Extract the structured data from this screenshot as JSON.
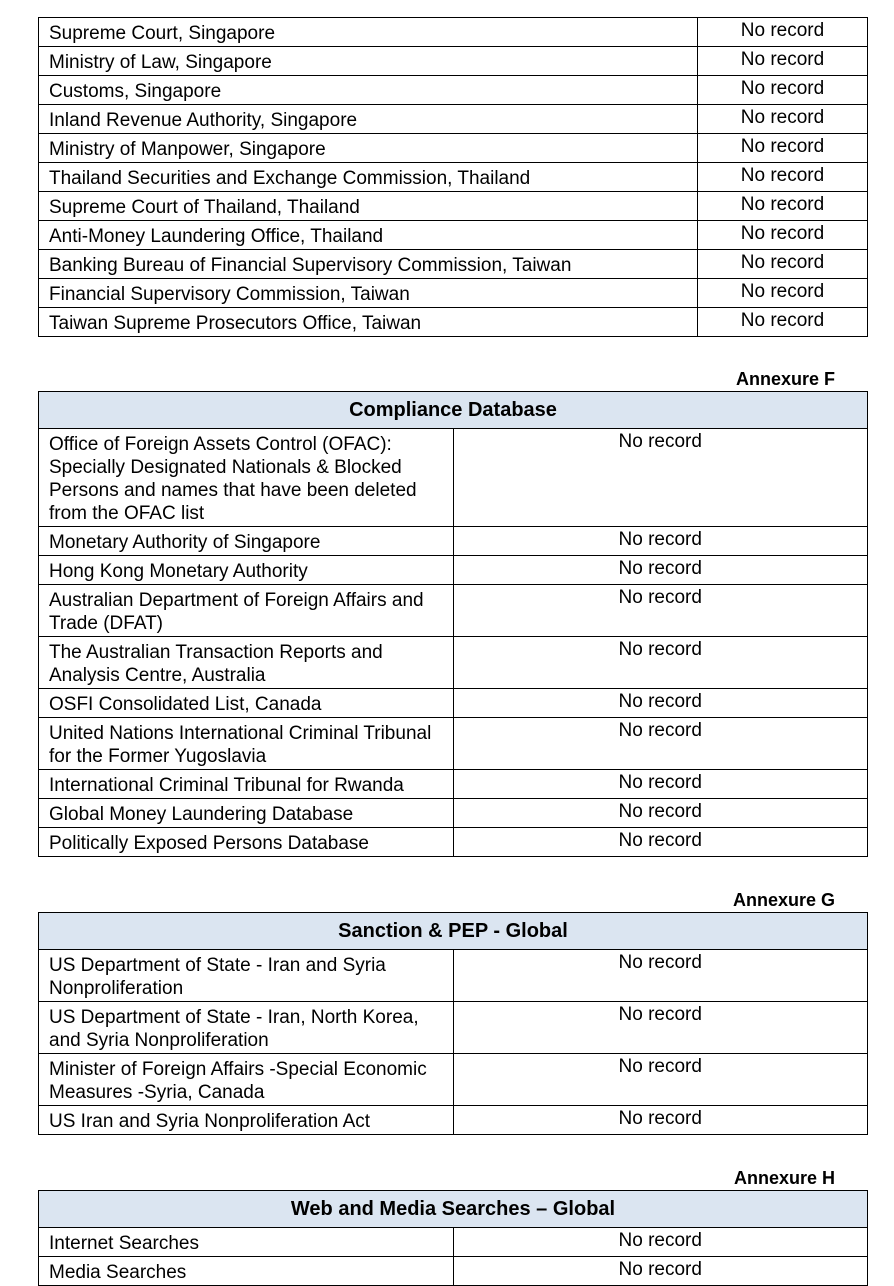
{
  "tables": [
    {
      "annexure": "",
      "title": "",
      "rows": [
        {
          "name": "Supreme Court, Singapore",
          "status": "No record"
        },
        {
          "name": "Ministry of Law, Singapore",
          "status": "No record"
        },
        {
          "name": "Customs, Singapore",
          "status": "No record"
        },
        {
          "name": "Inland Revenue Authority, Singapore",
          "status": "No record"
        },
        {
          "name": "Ministry of Manpower, Singapore",
          "status": "No record"
        },
        {
          "name": "Thailand Securities and Exchange Commission, Thailand",
          "status": "No record"
        },
        {
          "name": "Supreme Court of Thailand, Thailand",
          "status": "No record"
        },
        {
          "name": "Anti-Money Laundering Office, Thailand",
          "status": "No record"
        },
        {
          "name": "Banking Bureau of Financial Supervisory Commission, Taiwan",
          "status": "No record"
        },
        {
          "name": "Financial Supervisory Commission, Taiwan",
          "status": "No record"
        },
        {
          "name": "Taiwan Supreme Prosecutors Office, Taiwan",
          "status": "No record"
        }
      ]
    },
    {
      "annexure": "Annexure F",
      "title": "Compliance Database",
      "rows": [
        {
          "name": "Office of Foreign Assets Control (OFAC): Specially Designated Nationals & Blocked Persons and names that have been deleted from the OFAC list",
          "status": "No record"
        },
        {
          "name": "Monetary Authority of Singapore",
          "status": "No record"
        },
        {
          "name": "Hong Kong Monetary Authority",
          "status": "No record"
        },
        {
          "name": "Australian Department of Foreign Affairs and Trade (DFAT)",
          "status": "No record"
        },
        {
          "name": "The Australian Transaction Reports and Analysis Centre, Australia",
          "status": "No record"
        },
        {
          "name": "OSFI Consolidated List, Canada",
          "status": "No record"
        },
        {
          "name": "United Nations International Criminal Tribunal for the Former Yugoslavia",
          "status": "No record"
        },
        {
          "name": "International Criminal Tribunal for Rwanda",
          "status": "No record"
        },
        {
          "name": "Global Money Laundering Database",
          "status": "No record"
        },
        {
          "name": "Politically Exposed Persons Database",
          "status": "No record"
        }
      ]
    },
    {
      "annexure": "Annexure G",
      "title": "Sanction & PEP - Global",
      "rows": [
        {
          "name": "US Department of State - Iran and Syria Nonproliferation",
          "status": "No record"
        },
        {
          "name": "US Department of State - Iran, North Korea, and Syria Nonproliferation",
          "status": "No record"
        },
        {
          "name": "Minister of Foreign Affairs -Special Economic Measures -Syria, Canada",
          "status": "No record"
        },
        {
          "name": "US Iran and Syria Nonproliferation Act",
          "status": "No record"
        }
      ]
    },
    {
      "annexure": "Annexure H",
      "title": "Web and Media Searches – Global",
      "rows": [
        {
          "name": "Internet Searches",
          "status": "No record"
        },
        {
          "name": "Media Searches",
          "status": "No record"
        }
      ]
    }
  ]
}
